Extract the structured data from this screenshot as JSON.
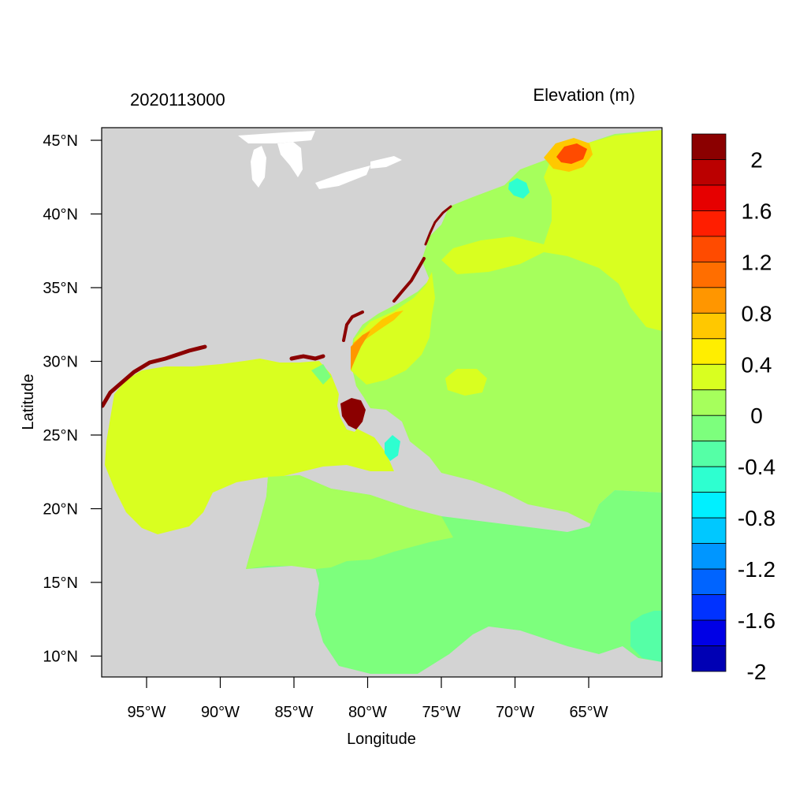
{
  "title_left": "2020113000",
  "title_right": "Elevation (m)",
  "x_axis_label": "Longitude",
  "y_axis_label": "Latitude",
  "x_ticks": [
    "95°W",
    "90°W",
    "85°W",
    "80°W",
    "75°W",
    "70°W",
    "65°W"
  ],
  "y_ticks": [
    "45°N",
    "40°N",
    "35°N",
    "30°N",
    "25°N",
    "20°N",
    "15°N",
    "10°N"
  ],
  "colorbar": {
    "labels": [
      "2",
      "1.6",
      "1.2",
      "0.8",
      "0.4",
      "0",
      "-0.4",
      "-0.8",
      "-1.2",
      "-1.6",
      "-2"
    ],
    "colors": [
      "#8b0000",
      "#bb0000",
      "#e60000",
      "#ff1e00",
      "#ff4b00",
      "#ff6e00",
      "#ff9600",
      "#ffc800",
      "#ffee00",
      "#d9ff20",
      "#a6ff5c",
      "#7dff7d",
      "#55ffa6",
      "#2effd0",
      "#00f0ff",
      "#00c8ff",
      "#0096ff",
      "#0064ff",
      "#0032ff",
      "#0000e6",
      "#0000b4"
    ]
  },
  "colors": {
    "land": "#d3d3d3",
    "lake": "#ffffff",
    "gulf_water": "#d9ff20",
    "atlantic_water": "#a6ff5c",
    "caribbean_water": "#7dff7d",
    "high_surge": "#8b0000"
  }
}
